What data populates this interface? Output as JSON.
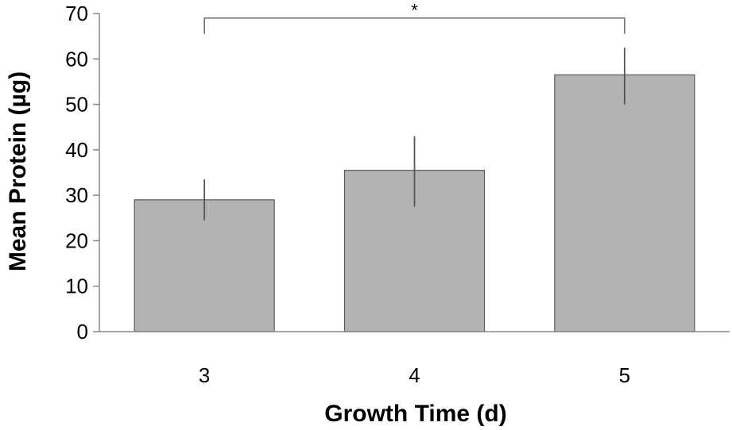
{
  "chart_data": {
    "type": "bar",
    "title": "",
    "xlabel": "Growth Time (d)",
    "ylabel": "Mean Protein (µg)",
    "categories": [
      "3",
      "4",
      "5"
    ],
    "values": [
      29,
      35.5,
      56.5
    ],
    "error": [
      [
        24.5,
        33.5
      ],
      [
        27.5,
        43
      ],
      [
        50,
        62.5
      ]
    ],
    "ylim": [
      0,
      70
    ],
    "yticks": [
      0,
      10,
      20,
      30,
      40,
      50,
      60,
      70
    ],
    "grid": false,
    "legend": "none",
    "bar_color": "#b3b3b3",
    "bar_edge_color": "#595959",
    "annotations": [
      {
        "type": "significance",
        "label": "*",
        "from_category": "3",
        "to_category": "5",
        "y": 69
      }
    ]
  }
}
